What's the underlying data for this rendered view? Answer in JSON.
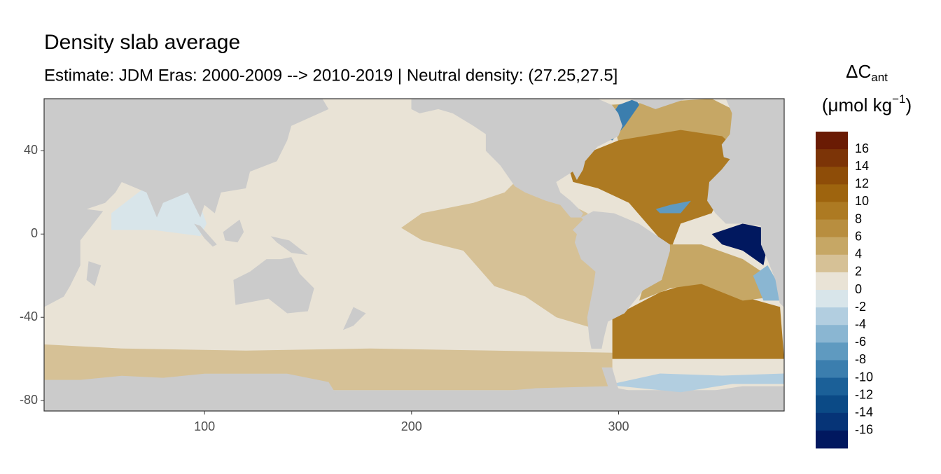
{
  "chart_data": {
    "type": "map",
    "title": "Density slab average",
    "subtitle": "Estimate: JDM Eras: 2000-2009 --> 2010-2019 | Neutral density: (27.25,27.5]",
    "legend_title": {
      "symbol": "ΔC",
      "subscript": "ant",
      "unit": "(μmol kg",
      "exponent": "−1",
      "close": ")"
    },
    "xlim": [
      22.5,
      380
    ],
    "xticks": [
      100,
      200,
      300
    ],
    "ylim": [
      -85,
      65
    ],
    "yticks": [
      40,
      0,
      -40,
      -80
    ],
    "colorbar_ticks": [
      16,
      14,
      12,
      10,
      8,
      6,
      4,
      2,
      0,
      -2,
      -4,
      -6,
      -8,
      -10,
      -12,
      -14,
      -16
    ],
    "colors": [
      "#6a1b04",
      "#7c3407",
      "#8e4d08",
      "#9e640e",
      "#ad7a22",
      "#b88e3f",
      "#c6a765",
      "#d6c196",
      "#e9e3d6",
      "#d8e5ea",
      "#b2cee0",
      "#8ab6d2",
      "#5f9ac0",
      "#3b7eae",
      "#1b6098",
      "#0b4a86",
      "#063477",
      "#01185f"
    ],
    "regions": [
      {
        "value": 1,
        "lon": [
          22.5,
          380,
          380,
          22.5
        ],
        "lat": [
          65,
          65,
          -75,
          -75
        ]
      },
      {
        "value": 3,
        "lon": [
          22.5,
          60,
          120,
          180,
          240,
          297,
          297,
          22.5
        ],
        "lat": [
          -53,
          -55,
          -56,
          -55,
          -56,
          -57,
          -75,
          -75
        ]
      },
      {
        "value": 3,
        "lon": [
          250,
          265,
          285,
          290,
          287,
          270,
          255,
          240,
          225,
          205,
          195,
          205,
          230,
          245
        ],
        "lat": [
          25,
          20,
          10,
          -15,
          -45,
          -40,
          -30,
          -25,
          -8,
          -3,
          3,
          10,
          15,
          20
        ]
      },
      {
        "value": -1,
        "lon": [
          55,
          72,
          95,
          101,
          98,
          75,
          55
        ],
        "lat": [
          10,
          23,
          22,
          5,
          -1,
          2,
          2
        ]
      },
      {
        "value": 5,
        "lon": [
          295,
          345,
          355,
          358,
          352,
          300
        ],
        "lat": [
          62,
          65,
          60,
          48,
          44,
          44
        ]
      },
      {
        "value": 9,
        "lon": [
          275,
          300,
          330,
          350,
          358,
          352,
          345,
          330,
          325,
          305,
          290,
          278
        ],
        "lat": [
          35,
          45,
          50,
          47,
          40,
          25,
          10,
          5,
          -8,
          15,
          22,
          25
        ]
      },
      {
        "value": 9,
        "lon": [
          297,
          320,
          340,
          360,
          378,
          380,
          340,
          297
        ],
        "lat": [
          -40,
          -28,
          -22,
          -30,
          -35,
          -60,
          -60,
          -60
        ]
      },
      {
        "value": 5,
        "lon": [
          318,
          340,
          360,
          372,
          376,
          360,
          340,
          325,
          310
        ],
        "lat": [
          -5,
          -5,
          -12,
          -20,
          -30,
          -32,
          -24,
          -26,
          -32
        ]
      },
      {
        "value": -17,
        "lon": [
          345,
          360,
          370,
          372,
          370,
          360,
          350
        ],
        "lat": [
          0,
          5,
          3,
          -5,
          -15,
          -8,
          -5
        ]
      },
      {
        "value": -6,
        "lon": [
          365,
          372,
          376,
          378,
          370
        ],
        "lat": [
          -20,
          -15,
          -22,
          -32,
          -32
        ]
      },
      {
        "value": -8,
        "lon": [
          318,
          325,
          335,
          330,
          320
        ],
        "lat": [
          12,
          14,
          16,
          10,
          10
        ]
      },
      {
        "value": -10,
        "lon": [
          290,
          297,
          303,
          310,
          308,
          300,
          292
        ],
        "lat": [
          47,
          45,
          52,
          62,
          65,
          62,
          50
        ]
      },
      {
        "value": -4,
        "lon": [
          297,
          320,
          350,
          380,
          380,
          355,
          330,
          300
        ],
        "lat": [
          -72,
          -67,
          -68,
          -67,
          -72,
          -72,
          -76,
          -73
        ]
      }
    ]
  }
}
